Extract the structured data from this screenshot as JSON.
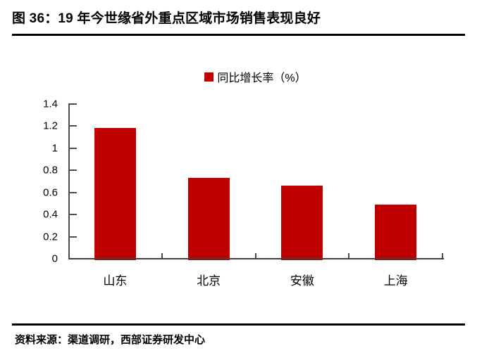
{
  "header": {
    "title": "图 36：19 年今世缘省外重点区域市场销售表现良好"
  },
  "chart_data": {
    "type": "bar",
    "title": "19 年今世缘省外重点区域市场销售表现良好",
    "categories": [
      "山东",
      "北京",
      "安徽",
      "上海"
    ],
    "series": [
      {
        "name": "同比增长率（%）",
        "values": [
          1.18,
          0.73,
          0.66,
          0.49
        ]
      }
    ],
    "xlabel": "",
    "ylabel": "",
    "ylim": [
      0,
      1.4
    ],
    "yticks": [
      0,
      0.2,
      0.4,
      0.6,
      0.8,
      1.0,
      1.2,
      1.4
    ],
    "ytick_labels": [
      "0",
      "0.2",
      "0.4",
      "0.6",
      "0.8",
      "1",
      "1.2",
      "1.4"
    ],
    "grid": false,
    "legend_position": "top-center"
  },
  "colors": {
    "bar": "#c00000",
    "axis": "#4d4d4d",
    "rule": "#000000",
    "text": "#000000"
  },
  "footer": {
    "source": "资料来源：渠道调研，西部证券研发中心"
  }
}
